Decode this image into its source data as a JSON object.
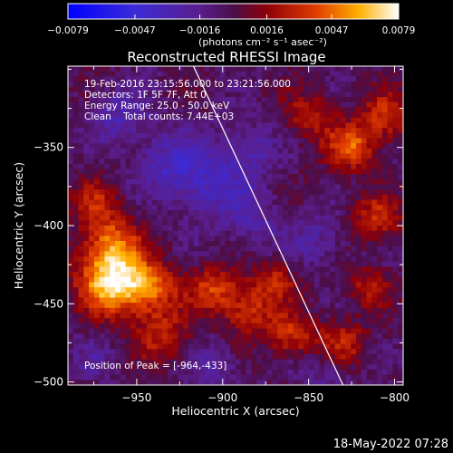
{
  "chart_data": {
    "type": "heatmap",
    "title": "Reconstructed RHESSI Image",
    "xlabel": "Heliocentric X (arcsec)",
    "ylabel": "Heliocentric Y (arcsec)",
    "xlim": [
      -990,
      -795
    ],
    "ylim": [
      -502,
      -298
    ],
    "x_ticks": [
      -950,
      -900,
      -850,
      -800
    ],
    "x_tick_labels": [
      "−950",
      "−900",
      "−850",
      "−800"
    ],
    "y_ticks": [
      -500,
      -450,
      -400,
      -350
    ],
    "y_tick_labels": [
      "−500",
      "−450",
      "−400",
      "−350"
    ],
    "colorbar": {
      "min": -0.0079,
      "max": 0.0079,
      "ticks": [
        -0.0079,
        -0.0047,
        -0.0016,
        0.0016,
        0.0047,
        0.0079
      ],
      "tick_labels": [
        "−0.0079",
        "−0.0047",
        "−0.0016",
        "0.0016",
        "0.0047",
        "0.0079"
      ],
      "units_label": "(photons cm⁻² s⁻¹ asec⁻²)"
    },
    "annotations": {
      "time_range": "19-Feb-2016 23:15:56.000 to 23:21:56.000",
      "detectors": "Detectors: 1F 5F 7F, Att 0",
      "energy_range": "Energy Range: 25.0 - 50.0 keV",
      "clean_counts": "Clean    Total counts: 7.44E+03",
      "peak_position": "Position of Peak = [-964,-433]"
    },
    "peak": [
      -964,
      -433
    ],
    "limb_line": [
      [
        -917,
        -298
      ],
      [
        -830,
        -502
      ]
    ],
    "blobs": [
      {
        "x": -963,
        "y": -436,
        "amp": 1.0,
        "s": 14
      },
      {
        "x": -965,
        "y": -410,
        "amp": 0.55,
        "s": 12
      },
      {
        "x": -975,
        "y": -385,
        "amp": 0.35,
        "s": 10
      },
      {
        "x": -940,
        "y": -440,
        "amp": 0.45,
        "s": 11
      },
      {
        "x": -935,
        "y": -470,
        "amp": 0.4,
        "s": 12
      },
      {
        "x": -905,
        "y": -440,
        "amp": 0.5,
        "s": 10
      },
      {
        "x": -885,
        "y": -455,
        "amp": 0.45,
        "s": 11
      },
      {
        "x": -870,
        "y": -435,
        "amp": 0.4,
        "s": 9
      },
      {
        "x": -860,
        "y": -470,
        "amp": 0.45,
        "s": 10
      },
      {
        "x": -830,
        "y": -475,
        "amp": 0.4,
        "s": 10
      },
      {
        "x": -815,
        "y": -440,
        "amp": 0.35,
        "s": 9
      },
      {
        "x": -810,
        "y": -395,
        "amp": 0.45,
        "s": 10
      },
      {
        "x": -825,
        "y": -350,
        "amp": 0.6,
        "s": 10
      },
      {
        "x": -805,
        "y": -330,
        "amp": 0.5,
        "s": 10
      },
      {
        "x": -850,
        "y": -330,
        "amp": 0.35,
        "s": 11
      },
      {
        "x": -905,
        "y": -375,
        "amp": -0.35,
        "s": 16
      },
      {
        "x": -930,
        "y": -360,
        "amp": -0.35,
        "s": 14
      },
      {
        "x": -960,
        "y": -330,
        "amp": -0.3,
        "s": 12
      },
      {
        "x": -885,
        "y": -350,
        "amp": -0.25,
        "s": 12
      },
      {
        "x": -880,
        "y": -400,
        "amp": -0.2,
        "s": 12
      },
      {
        "x": -845,
        "y": -410,
        "amp": -0.25,
        "s": 11
      },
      {
        "x": -905,
        "y": -490,
        "amp": -0.2,
        "s": 12
      },
      {
        "x": -975,
        "y": -485,
        "amp": -0.15,
        "s": 10
      },
      {
        "x": -840,
        "y": -495,
        "amp": -0.2,
        "s": 10
      }
    ]
  },
  "footer": {
    "date_stamp": "18-May-2022 07:28"
  }
}
